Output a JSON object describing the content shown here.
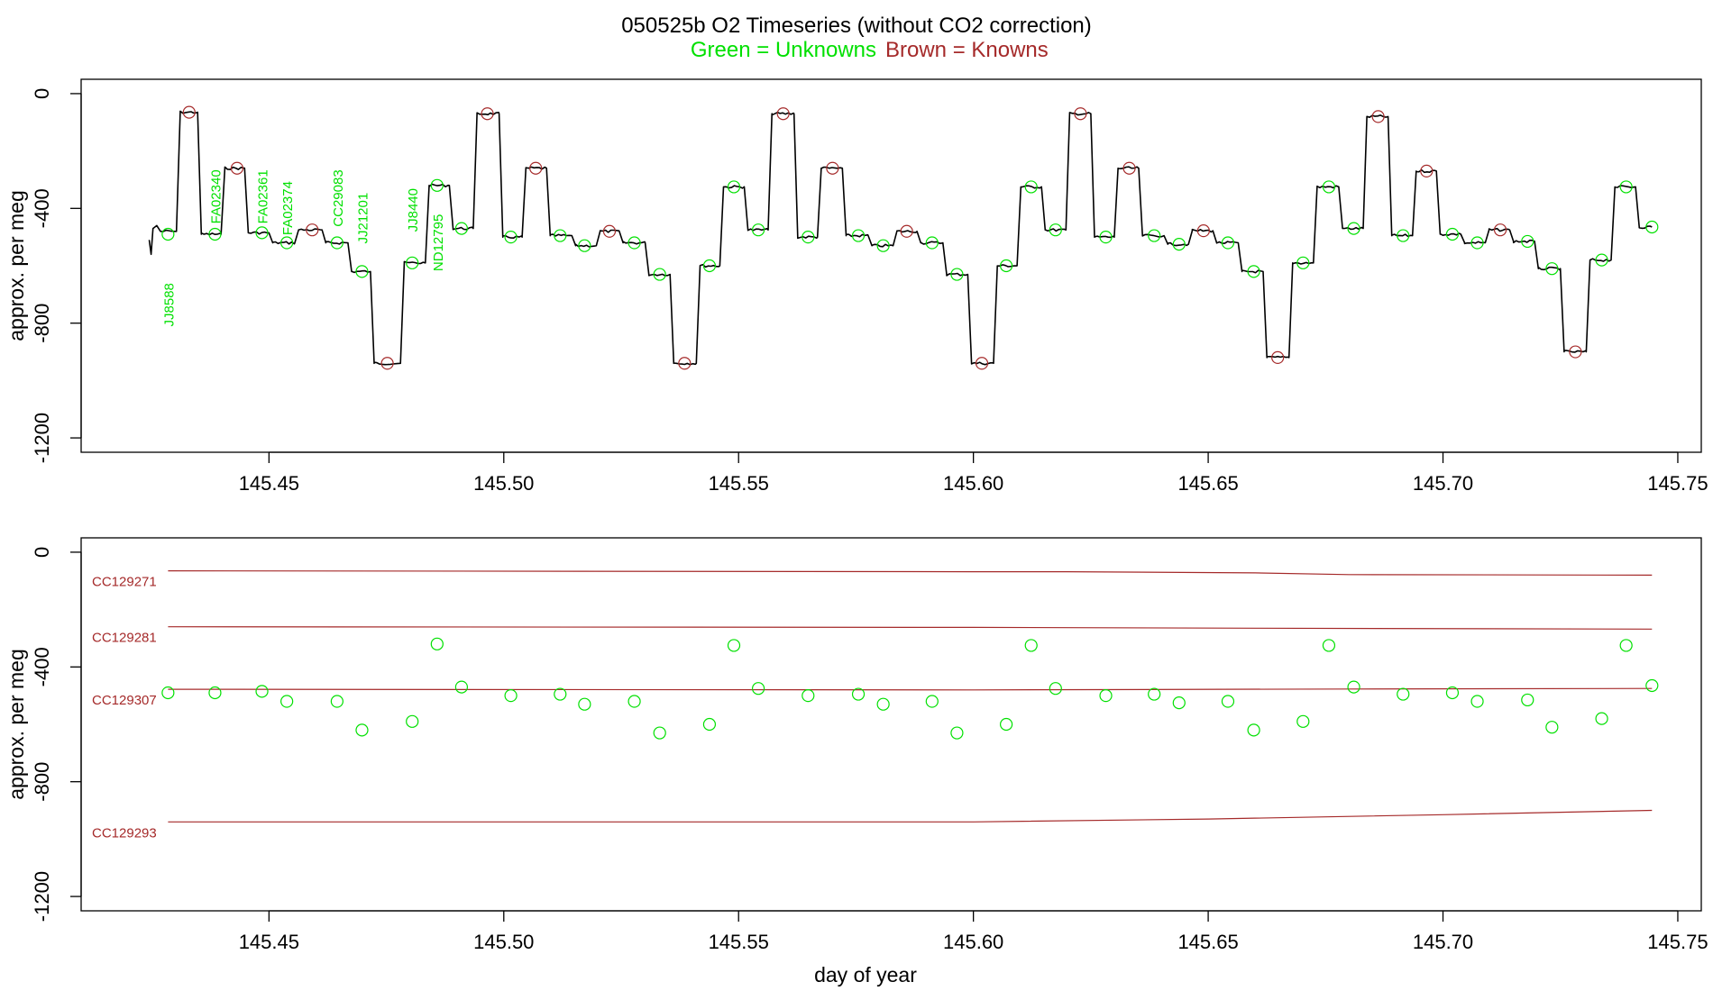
{
  "title": "050525b   O2 Timeseries (without CO2 correction)",
  "legend": {
    "unknowns_label": "Green = Unknowns",
    "knowns_label": "Brown = Knowns"
  },
  "colors": {
    "unknown": "#00e000",
    "known": "#a52a2a",
    "trace": "#000000",
    "axis": "#000000",
    "background": "#ffffff"
  },
  "chart_data": [
    {
      "type": "line",
      "xlim": [
        145.41,
        145.755
      ],
      "ylim": [
        -1250,
        50
      ],
      "ylabel": "approx. per meg",
      "xlabel": "",
      "x_ticks": [
        "145.45",
        "145.50",
        "145.55",
        "145.60",
        "145.65",
        "145.70",
        "145.75"
      ],
      "x_tick_values": [
        145.45,
        145.5,
        145.55,
        145.6,
        145.65,
        145.7,
        145.75
      ],
      "y_ticks": [
        "0",
        "-400",
        "-800",
        "-1200"
      ],
      "y_tick_values": [
        0,
        -400,
        -800,
        -1200
      ],
      "grid": false,
      "trace_levels": [
        {
          "x_end": 145.4303,
          "y": -480
        },
        {
          "x_end": 145.4348,
          "y": -65
        },
        {
          "x_end": 145.4398,
          "y": -490
        },
        {
          "x_end": 145.4448,
          "y": -260
        },
        {
          "x_end": 145.45,
          "y": -485
        },
        {
          "x_end": 145.4555,
          "y": -520
        },
        {
          "x_end": 145.4613,
          "y": -475
        },
        {
          "x_end": 145.4668,
          "y": -520
        },
        {
          "x_end": 145.4716,
          "y": -620
        },
        {
          "x_end": 145.478,
          "y": -940
        },
        {
          "x_end": 145.4833,
          "y": -590
        },
        {
          "x_end": 145.4884,
          "y": -320
        },
        {
          "x_end": 145.4935,
          "y": -470
        },
        {
          "x_end": 145.499,
          "y": -70
        },
        {
          "x_end": 145.5039,
          "y": -500
        },
        {
          "x_end": 145.5091,
          "y": -260
        },
        {
          "x_end": 145.5145,
          "y": -495
        },
        {
          "x_end": 145.5197,
          "y": -530
        },
        {
          "x_end": 145.5246,
          "y": -480
        },
        {
          "x_end": 145.5301,
          "y": -520
        },
        {
          "x_end": 145.5354,
          "y": -630
        },
        {
          "x_end": 145.541,
          "y": -940
        },
        {
          "x_end": 145.546,
          "y": -600
        },
        {
          "x_end": 145.5512,
          "y": -325
        },
        {
          "x_end": 145.5563,
          "y": -475
        },
        {
          "x_end": 145.5618,
          "y": -70
        },
        {
          "x_end": 145.5668,
          "y": -500
        },
        {
          "x_end": 145.5721,
          "y": -260
        },
        {
          "x_end": 145.5776,
          "y": -495
        },
        {
          "x_end": 145.5829,
          "y": -530
        },
        {
          "x_end": 145.588,
          "y": -480
        },
        {
          "x_end": 145.5935,
          "y": -520
        },
        {
          "x_end": 145.5988,
          "y": -630
        },
        {
          "x_end": 145.6043,
          "y": -940
        },
        {
          "x_end": 145.6093,
          "y": -600
        },
        {
          "x_end": 145.6145,
          "y": -325
        },
        {
          "x_end": 145.6197,
          "y": -475
        },
        {
          "x_end": 145.625,
          "y": -70
        },
        {
          "x_end": 145.63,
          "y": -500
        },
        {
          "x_end": 145.6352,
          "y": -260
        },
        {
          "x_end": 145.6406,
          "y": -495
        },
        {
          "x_end": 145.6458,
          "y": -525
        },
        {
          "x_end": 145.651,
          "y": -478
        },
        {
          "x_end": 145.6564,
          "y": -520
        },
        {
          "x_end": 145.6617,
          "y": -620
        },
        {
          "x_end": 145.6672,
          "y": -920
        },
        {
          "x_end": 145.6724,
          "y": -590
        },
        {
          "x_end": 145.6778,
          "y": -325
        },
        {
          "x_end": 145.683,
          "y": -470
        },
        {
          "x_end": 145.6883,
          "y": -80
        },
        {
          "x_end": 145.6935,
          "y": -495
        },
        {
          "x_end": 145.6986,
          "y": -270
        },
        {
          "x_end": 145.7038,
          "y": -490
        },
        {
          "x_end": 145.709,
          "y": -520
        },
        {
          "x_end": 145.7142,
          "y": -475
        },
        {
          "x_end": 145.7195,
          "y": -515
        },
        {
          "x_end": 145.725,
          "y": -610
        },
        {
          "x_end": 145.7305,
          "y": -900
        },
        {
          "x_end": 145.7358,
          "y": -580
        },
        {
          "x_end": 145.741,
          "y": -325
        },
        {
          "x_end": 145.7445,
          "y": -465
        }
      ],
      "trace_start": {
        "x": 145.4245,
        "y": -510
      },
      "unknown_points": [
        {
          "x": 145.4285,
          "y": -490
        },
        {
          "x": 145.4385,
          "y": -490
        },
        {
          "x": 145.4485,
          "y": -485
        },
        {
          "x": 145.4538,
          "y": -520
        },
        {
          "x": 145.4645,
          "y": -520
        },
        {
          "x": 145.4698,
          "y": -620
        },
        {
          "x": 145.4805,
          "y": -590
        },
        {
          "x": 145.4858,
          "y": -320
        },
        {
          "x": 145.491,
          "y": -470
        },
        {
          "x": 145.5015,
          "y": -500
        },
        {
          "x": 145.512,
          "y": -495
        },
        {
          "x": 145.5172,
          "y": -530
        },
        {
          "x": 145.5278,
          "y": -520
        },
        {
          "x": 145.5332,
          "y": -630
        },
        {
          "x": 145.5438,
          "y": -600
        },
        {
          "x": 145.549,
          "y": -325
        },
        {
          "x": 145.5542,
          "y": -475
        },
        {
          "x": 145.5648,
          "y": -500
        },
        {
          "x": 145.5755,
          "y": -495
        },
        {
          "x": 145.5808,
          "y": -530
        },
        {
          "x": 145.5912,
          "y": -520
        },
        {
          "x": 145.5965,
          "y": -630
        },
        {
          "x": 145.607,
          "y": -600
        },
        {
          "x": 145.6123,
          "y": -325
        },
        {
          "x": 145.6175,
          "y": -475
        },
        {
          "x": 145.6282,
          "y": -500
        },
        {
          "x": 145.6385,
          "y": -495
        },
        {
          "x": 145.6438,
          "y": -525
        },
        {
          "x": 145.6542,
          "y": -520
        },
        {
          "x": 145.6597,
          "y": -620
        },
        {
          "x": 145.6702,
          "y": -590
        },
        {
          "x": 145.6757,
          "y": -325
        },
        {
          "x": 145.681,
          "y": -470
        },
        {
          "x": 145.6915,
          "y": -495
        },
        {
          "x": 145.702,
          "y": -490
        },
        {
          "x": 145.7073,
          "y": -520
        },
        {
          "x": 145.718,
          "y": -515
        },
        {
          "x": 145.7232,
          "y": -610
        },
        {
          "x": 145.7338,
          "y": -580
        },
        {
          "x": 145.739,
          "y": -325
        },
        {
          "x": 145.7445,
          "y": -465
        }
      ],
      "known_points": [
        {
          "x": 145.433,
          "y": -65
        },
        {
          "x": 145.4432,
          "y": -260
        },
        {
          "x": 145.4592,
          "y": -475
        },
        {
          "x": 145.4752,
          "y": -940
        },
        {
          "x": 145.4965,
          "y": -70
        },
        {
          "x": 145.5068,
          "y": -260
        },
        {
          "x": 145.5225,
          "y": -480
        },
        {
          "x": 145.5385,
          "y": -940
        },
        {
          "x": 145.5595,
          "y": -70
        },
        {
          "x": 145.57,
          "y": -260
        },
        {
          "x": 145.5858,
          "y": -480
        },
        {
          "x": 145.6018,
          "y": -940
        },
        {
          "x": 145.6228,
          "y": -70
        },
        {
          "x": 145.6332,
          "y": -260
        },
        {
          "x": 145.649,
          "y": -478
        },
        {
          "x": 145.6648,
          "y": -920
        },
        {
          "x": 145.6862,
          "y": -80
        },
        {
          "x": 145.6965,
          "y": -270
        },
        {
          "x": 145.7122,
          "y": -475
        },
        {
          "x": 145.7282,
          "y": -900
        }
      ],
      "sample_labels": [
        {
          "text": "JJ8588",
          "x": 145.4285,
          "y": -660
        },
        {
          "text": "FA02340",
          "x": 145.4385,
          "y": -265
        },
        {
          "text": "FA02361",
          "x": 145.4485,
          "y": -265
        },
        {
          "text": "FA02374",
          "x": 145.4538,
          "y": -305
        },
        {
          "text": "CC29083",
          "x": 145.4645,
          "y": -265
        },
        {
          "text": "JJ21201",
          "x": 145.4698,
          "y": -345
        },
        {
          "text": "JJ8440",
          "x": 145.4805,
          "y": -330
        },
        {
          "text": "ND12795",
          "x": 145.4858,
          "y": -420
        }
      ]
    },
    {
      "type": "scatter",
      "xlim": [
        145.41,
        145.755
      ],
      "ylim": [
        -1250,
        50
      ],
      "ylabel": "approx. per meg",
      "xlabel": "day of year",
      "x_ticks": [
        "145.45",
        "145.50",
        "145.55",
        "145.60",
        "145.65",
        "145.70",
        "145.75"
      ],
      "x_tick_values": [
        145.45,
        145.5,
        145.55,
        145.6,
        145.65,
        145.7,
        145.75
      ],
      "y_ticks": [
        "0",
        "-400",
        "-800",
        "-1200"
      ],
      "y_tick_values": [
        0,
        -400,
        -800,
        -1200
      ],
      "grid": false,
      "reference_lines": [
        {
          "name": "CC129271",
          "points": [
            [
              145.4285,
              -65
            ],
            [
              145.6,
              -68
            ],
            [
              145.62,
              -68
            ],
            [
              145.66,
              -72
            ],
            [
              145.68,
              -78
            ],
            [
              145.7445,
              -80
            ]
          ]
        },
        {
          "name": "CC129281",
          "points": [
            [
              145.4285,
              -260
            ],
            [
              145.6,
              -262
            ],
            [
              145.66,
              -265
            ],
            [
              145.7445,
              -268
            ]
          ]
        },
        {
          "name": "CC129307",
          "points": [
            [
              145.4285,
              -478
            ],
            [
              145.6,
              -480
            ],
            [
              145.68,
              -477
            ],
            [
              145.7445,
              -475
            ]
          ]
        },
        {
          "name": "CC129293",
          "points": [
            [
              145.4285,
              -940
            ],
            [
              145.6,
              -940
            ],
            [
              145.65,
              -930
            ],
            [
              145.7,
              -915
            ],
            [
              145.7445,
              -900
            ]
          ]
        }
      ],
      "unknown_points": [
        {
          "x": 145.4285,
          "y": -490
        },
        {
          "x": 145.4385,
          "y": -490
        },
        {
          "x": 145.4485,
          "y": -485
        },
        {
          "x": 145.4538,
          "y": -520
        },
        {
          "x": 145.4645,
          "y": -520
        },
        {
          "x": 145.4698,
          "y": -620
        },
        {
          "x": 145.4805,
          "y": -590
        },
        {
          "x": 145.4858,
          "y": -320
        },
        {
          "x": 145.491,
          "y": -470
        },
        {
          "x": 145.5015,
          "y": -500
        },
        {
          "x": 145.512,
          "y": -495
        },
        {
          "x": 145.5172,
          "y": -530
        },
        {
          "x": 145.5278,
          "y": -520
        },
        {
          "x": 145.5332,
          "y": -630
        },
        {
          "x": 145.5438,
          "y": -600
        },
        {
          "x": 145.549,
          "y": -325
        },
        {
          "x": 145.5542,
          "y": -475
        },
        {
          "x": 145.5648,
          "y": -500
        },
        {
          "x": 145.5755,
          "y": -495
        },
        {
          "x": 145.5808,
          "y": -530
        },
        {
          "x": 145.5912,
          "y": -520
        },
        {
          "x": 145.5965,
          "y": -630
        },
        {
          "x": 145.607,
          "y": -600
        },
        {
          "x": 145.6123,
          "y": -325
        },
        {
          "x": 145.6175,
          "y": -475
        },
        {
          "x": 145.6282,
          "y": -500
        },
        {
          "x": 145.6385,
          "y": -495
        },
        {
          "x": 145.6438,
          "y": -525
        },
        {
          "x": 145.6542,
          "y": -520
        },
        {
          "x": 145.6597,
          "y": -620
        },
        {
          "x": 145.6702,
          "y": -590
        },
        {
          "x": 145.6757,
          "y": -325
        },
        {
          "x": 145.681,
          "y": -470
        },
        {
          "x": 145.6915,
          "y": -495
        },
        {
          "x": 145.702,
          "y": -490
        },
        {
          "x": 145.7073,
          "y": -520
        },
        {
          "x": 145.718,
          "y": -515
        },
        {
          "x": 145.7232,
          "y": -610
        },
        {
          "x": 145.7338,
          "y": -580
        },
        {
          "x": 145.739,
          "y": -325
        },
        {
          "x": 145.7445,
          "y": -465
        }
      ]
    }
  ]
}
